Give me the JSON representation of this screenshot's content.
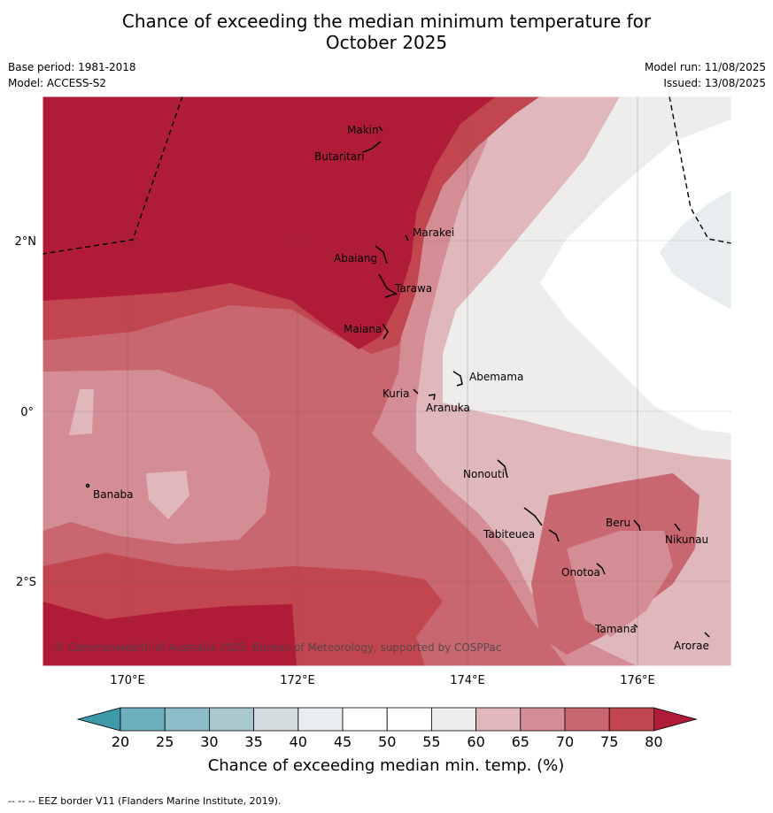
{
  "title": {
    "line1": "Chance of exceeding the median minimum temperature for",
    "line2": "October 2025"
  },
  "meta": {
    "base_period": "Base period: 1981-2018",
    "model": "Model: ACCESS-S2",
    "model_run": "Model run: 11/08/2025",
    "issued": "Issued: 13/08/2025"
  },
  "map": {
    "lon_ticks": [
      "170°E",
      "172°E",
      "174°E",
      "176°E"
    ],
    "lat_ticks": [
      "2°N",
      "0°",
      "2°S"
    ],
    "copyright": "© Commonwealth of Australia 2025, Bureau of Meteorology, supported by COSPPac",
    "islands": [
      {
        "name": "Makin"
      },
      {
        "name": "Butaritari"
      },
      {
        "name": "Marakei"
      },
      {
        "name": "Abaiang"
      },
      {
        "name": "Tarawa"
      },
      {
        "name": "Maiana"
      },
      {
        "name": "Abemama"
      },
      {
        "name": "Kuria"
      },
      {
        "name": "Aranuka"
      },
      {
        "name": "Banaba"
      },
      {
        "name": "Nonouti"
      },
      {
        "name": "Tabiteuea"
      },
      {
        "name": "Beru"
      },
      {
        "name": "Nikunau"
      },
      {
        "name": "Onotoa"
      },
      {
        "name": "Tamana"
      },
      {
        "name": "Arorae"
      }
    ]
  },
  "colorbar": {
    "ticks": [
      "20",
      "25",
      "30",
      "35",
      "40",
      "45",
      "50",
      "55",
      "60",
      "65",
      "70",
      "75",
      "80"
    ],
    "colors": [
      "#3e9aa8",
      "#6eafbd",
      "#8cbcc8",
      "#a8c8ce",
      "#d4dbde",
      "#e8eef0",
      "#ffffff",
      "#ffffff",
      "#eeedeb",
      "#e0b8bc",
      "#d48d95",
      "#c96771",
      "#c2464f",
      "#b01c38"
    ],
    "label": "Chance of exceeding median min. temp. (%)"
  },
  "footer": "--  --  -- EEZ border V11 (Flanders Marine Institute, 2019)."
}
